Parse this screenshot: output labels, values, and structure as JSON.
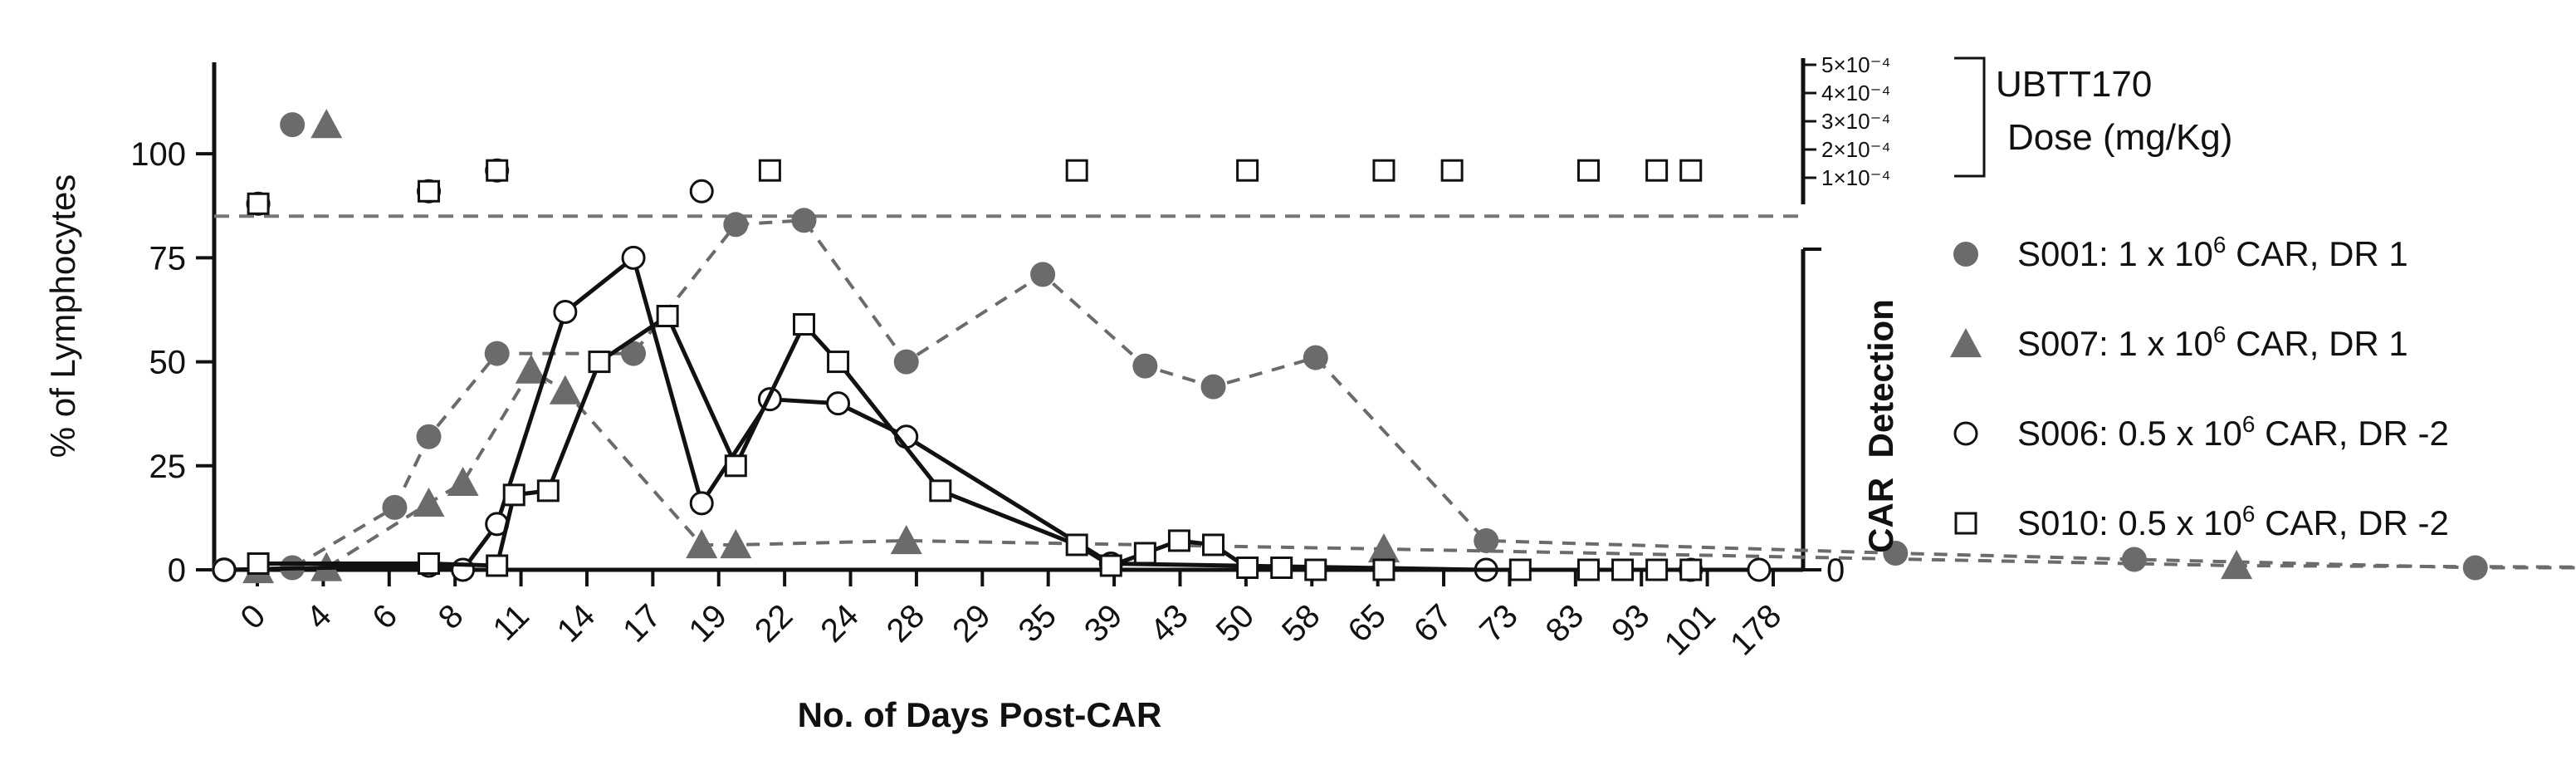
{
  "chart_data": {
    "type": "line",
    "xlabel": "No. of Days Post-CAR",
    "ylabel": "% of Lymphocytes",
    "right_ylabel": "CAR  Detection",
    "right_zero_label": "0",
    "yticks": [
      0,
      25,
      50,
      75,
      100
    ],
    "ylim": [
      0,
      120
    ],
    "x_categories": [
      "0",
      "4",
      "6",
      "8",
      "11",
      "14",
      "17",
      "19",
      "22",
      "24",
      "28",
      "29",
      "35",
      "39",
      "43",
      "50",
      "58",
      "65",
      "67",
      "73",
      "83",
      "93",
      "101",
      "178"
    ],
    "threshold_y": 85,
    "dose_axis": {
      "label_line1": "UBTT170",
      "label_line2": "Dose (mg/Kg)",
      "ticks": [
        "5×10⁻⁴",
        "4×10⁻⁴",
        "3×10⁻⁴",
        "2×10⁻⁴",
        "1×10⁻⁴"
      ],
      "tick_values": [
        0.0005,
        0.0004,
        0.0003,
        0.0002,
        0.0001
      ]
    },
    "series": [
      {
        "key": "S001",
        "legend_prefix": "S001: 1 x 10",
        "legend_sup": "6",
        "legend_suffix": " CAR,  DR 1",
        "marker": "circle-filled",
        "line": "dashed",
        "color": "#6b6b6b",
        "x": [
          0,
          2,
          5,
          6,
          8,
          12,
          15,
          17,
          20,
          24,
          27,
          29,
          32,
          37,
          49,
          56,
          66,
          83
        ],
        "y": [
          0,
          0.5,
          15,
          32,
          52,
          52,
          83,
          84,
          50,
          71,
          49,
          44,
          51,
          7,
          4,
          2.5,
          0.5,
          0.5
        ],
        "dose_x": [
          2
        ],
        "dose_y": [
          107
        ]
      },
      {
        "key": "S007",
        "legend_prefix": "S007: 1 x 10",
        "legend_sup": "6",
        "legend_suffix": " CAR,  DR 1",
        "marker": "triangle-filled",
        "line": "dashed",
        "color": "#6b6b6b",
        "x": [
          1,
          3,
          6,
          7,
          9,
          10,
          14,
          15,
          20,
          34,
          59,
          88,
          101
        ],
        "y": [
          0,
          0.5,
          16,
          21,
          48,
          43,
          6,
          6,
          7,
          5,
          1,
          0,
          0
        ],
        "dose_x": [
          3
        ],
        "dose_y": [
          107
        ]
      },
      {
        "key": "S006",
        "legend_prefix": "S006: 0.5 x 10",
        "legend_sup": "6",
        "legend_suffix": " CAR,  DR -2",
        "marker": "circle-open",
        "line": "solid",
        "color": "#111111",
        "x": [
          0,
          6,
          7,
          8,
          10,
          12,
          14,
          16,
          18,
          20,
          26,
          37,
          43,
          45
        ],
        "y": [
          0,
          1,
          0,
          11,
          62,
          75,
          16,
          41,
          40,
          32,
          1.5,
          0,
          0,
          0
        ],
        "dose_x": [
          1,
          6,
          8,
          14
        ],
        "dose_y": [
          88,
          91,
          96,
          91
        ]
      },
      {
        "key": "S010",
        "legend_prefix": "S010: 0.5 x 10",
        "legend_sup": "6",
        "legend_suffix": " CAR,  DR -2",
        "marker": "square-open",
        "line": "solid",
        "color": "#111111",
        "x": [
          1,
          6,
          8,
          8.5,
          9.5,
          11,
          13,
          15,
          17,
          18,
          21,
          25,
          26,
          27,
          28,
          29,
          30,
          31,
          32,
          34,
          38,
          40,
          41,
          42,
          43
        ],
        "y": [
          1.5,
          1.5,
          1,
          18,
          19,
          50,
          61,
          25,
          59,
          50,
          19,
          6,
          1,
          4,
          7,
          6,
          0.5,
          0.5,
          0,
          0,
          0,
          0,
          0,
          0,
          0
        ],
        "dose_x": [
          1,
          6,
          8,
          16,
          25,
          30,
          34,
          36,
          40,
          42,
          43
        ],
        "dose_y": [
          88,
          91,
          96,
          96,
          96,
          96,
          96,
          96,
          96,
          96,
          96
        ]
      }
    ]
  }
}
